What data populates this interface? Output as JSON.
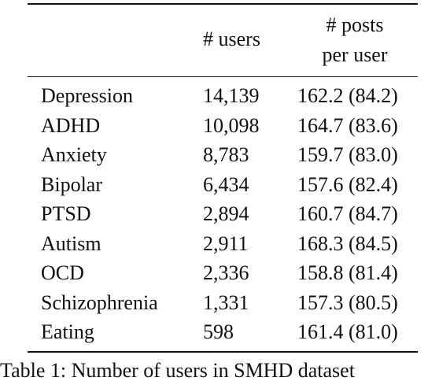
{
  "table": {
    "header": [
      "# users",
      [
        "# posts",
        "per user"
      ]
    ],
    "rows": [
      [
        "Depression",
        "14,139",
        "162.2 (84.2)"
      ],
      [
        "ADHD",
        "10,098",
        "164.7 (83.6)"
      ],
      [
        "Anxiety",
        "8,783",
        "159.7 (83.0)"
      ],
      [
        "Bipolar",
        "6,434",
        "157.6 (82.4)"
      ],
      [
        "PTSD",
        "2,894",
        "160.7 (84.7)"
      ],
      [
        "Autism",
        "2,911",
        "168.3 (84.5)"
      ],
      [
        "OCD",
        "2,336",
        "158.8 (81.4)"
      ],
      [
        "Schizophrenia",
        "1,331",
        "157.3 (80.5)"
      ],
      [
        "Eating",
        "598",
        "161.4 (81.0)"
      ]
    ]
  },
  "caption": "Table 1:  Number of users in SMHD dataset"
}
